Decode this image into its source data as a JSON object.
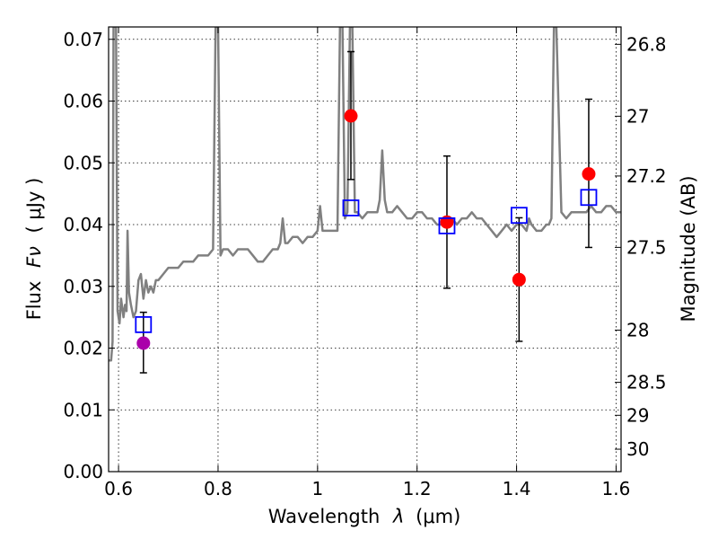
{
  "chart_data": {
    "type": "scatter",
    "title": "",
    "xlabel_prefix": "Wavelength",
    "xlabel_symbol": "λ",
    "xlabel_unit": "(μm)",
    "ylabel_prefix": "Flux",
    "ylabel_symbol": "Fν",
    "ylabel_unit": "( μJy )",
    "y2label": "Magnitude (AB)",
    "xlim": [
      0.58,
      1.61
    ],
    "ylim": [
      0.0,
      0.072
    ],
    "grid": true,
    "x_ticks": [
      0.6,
      0.8,
      1.0,
      1.2,
      1.4,
      1.6
    ],
    "x_tick_labels": [
      "0.6",
      "0.8",
      "1",
      "1.2",
      "1.4",
      "1.6"
    ],
    "y_ticks": [
      0.0,
      0.01,
      0.02,
      0.03,
      0.04,
      0.05,
      0.06,
      0.07
    ],
    "y_tick_labels": [
      "0.00",
      "0.01",
      "0.02",
      "0.03",
      "0.04",
      "0.05",
      "0.06",
      "0.07"
    ],
    "mag_ticks": [
      26.8,
      27,
      27.2,
      27.5,
      28,
      28.5,
      29,
      30
    ],
    "mag_tick_labels": [
      "26.8",
      "27",
      "27.2",
      "27.5",
      "28",
      "28.5",
      "29",
      "30"
    ],
    "colors": {
      "model": "#808080",
      "observed": "#ff0000",
      "observed_uv": "#aa00aa",
      "model_box": "#0000ff",
      "errorbar": "#000000"
    },
    "observed_points": [
      {
        "x": 0.65,
        "y": 0.0208,
        "err_low": 0.0048,
        "err_high": 0.005,
        "color": "#aa00aa"
      },
      {
        "x": 1.067,
        "y": 0.0576,
        "err_low": 0.0103,
        "err_high": 0.0104,
        "color": "#ff0000"
      },
      {
        "x": 1.26,
        "y": 0.0404,
        "err_low": 0.0107,
        "err_high": 0.0107,
        "color": "#ff0000"
      },
      {
        "x": 1.405,
        "y": 0.0311,
        "err_low": 0.01,
        "err_high": 0.01,
        "color": "#ff0000"
      },
      {
        "x": 1.545,
        "y": 0.0482,
        "err_low": 0.0119,
        "err_high": 0.0121,
        "color": "#ff0000"
      }
    ],
    "model_points": [
      {
        "x": 0.65,
        "y": 0.0238
      },
      {
        "x": 1.067,
        "y": 0.0427
      },
      {
        "x": 1.26,
        "y": 0.0398
      },
      {
        "x": 1.405,
        "y": 0.0415
      },
      {
        "x": 1.545,
        "y": 0.0444
      }
    ],
    "model_spectrum": [
      [
        0.58,
        0.018
      ],
      [
        0.585,
        0.018
      ],
      [
        0.588,
        0.021
      ],
      [
        0.59,
        0.072
      ],
      [
        0.595,
        0.072
      ],
      [
        0.598,
        0.026
      ],
      [
        0.602,
        0.024
      ],
      [
        0.605,
        0.028
      ],
      [
        0.61,
        0.025
      ],
      [
        0.613,
        0.027
      ],
      [
        0.616,
        0.026
      ],
      [
        0.618,
        0.039
      ],
      [
        0.621,
        0.029
      ],
      [
        0.625,
        0.027
      ],
      [
        0.63,
        0.025
      ],
      [
        0.635,
        0.026
      ],
      [
        0.64,
        0.031
      ],
      [
        0.645,
        0.032
      ],
      [
        0.65,
        0.028
      ],
      [
        0.655,
        0.031
      ],
      [
        0.66,
        0.029
      ],
      [
        0.665,
        0.03
      ],
      [
        0.67,
        0.029
      ],
      [
        0.675,
        0.031
      ],
      [
        0.68,
        0.031
      ],
      [
        0.69,
        0.032
      ],
      [
        0.7,
        0.033
      ],
      [
        0.71,
        0.033
      ],
      [
        0.72,
        0.033
      ],
      [
        0.73,
        0.034
      ],
      [
        0.74,
        0.034
      ],
      [
        0.75,
        0.034
      ],
      [
        0.76,
        0.035
      ],
      [
        0.77,
        0.035
      ],
      [
        0.78,
        0.035
      ],
      [
        0.79,
        0.036
      ],
      [
        0.795,
        0.072
      ],
      [
        0.8,
        0.072
      ],
      [
        0.805,
        0.035
      ],
      [
        0.81,
        0.036
      ],
      [
        0.82,
        0.036
      ],
      [
        0.83,
        0.035
      ],
      [
        0.84,
        0.036
      ],
      [
        0.85,
        0.036
      ],
      [
        0.86,
        0.036
      ],
      [
        0.87,
        0.035
      ],
      [
        0.88,
        0.034
      ],
      [
        0.89,
        0.034
      ],
      [
        0.9,
        0.035
      ],
      [
        0.91,
        0.036
      ],
      [
        0.92,
        0.036
      ],
      [
        0.925,
        0.037
      ],
      [
        0.93,
        0.041
      ],
      [
        0.935,
        0.037
      ],
      [
        0.94,
        0.037
      ],
      [
        0.95,
        0.038
      ],
      [
        0.96,
        0.038
      ],
      [
        0.97,
        0.037
      ],
      [
        0.98,
        0.038
      ],
      [
        0.99,
        0.038
      ],
      [
        1.0,
        0.039
      ],
      [
        1.005,
        0.043
      ],
      [
        1.01,
        0.039
      ],
      [
        1.02,
        0.039
      ],
      [
        1.03,
        0.039
      ],
      [
        1.04,
        0.039
      ],
      [
        1.045,
        0.072
      ],
      [
        1.05,
        0.072
      ],
      [
        1.055,
        0.041
      ],
      [
        1.06,
        0.042
      ],
      [
        1.065,
        0.072
      ],
      [
        1.07,
        0.072
      ],
      [
        1.075,
        0.042
      ],
      [
        1.08,
        0.042
      ],
      [
        1.09,
        0.041
      ],
      [
        1.1,
        0.042
      ],
      [
        1.11,
        0.042
      ],
      [
        1.12,
        0.042
      ],
      [
        1.125,
        0.044
      ],
      [
        1.13,
        0.052
      ],
      [
        1.135,
        0.044
      ],
      [
        1.14,
        0.042
      ],
      [
        1.15,
        0.042
      ],
      [
        1.16,
        0.043
      ],
      [
        1.17,
        0.042
      ],
      [
        1.18,
        0.041
      ],
      [
        1.19,
        0.041
      ],
      [
        1.2,
        0.042
      ],
      [
        1.21,
        0.042
      ],
      [
        1.22,
        0.041
      ],
      [
        1.23,
        0.041
      ],
      [
        1.24,
        0.04
      ],
      [
        1.25,
        0.04
      ],
      [
        1.26,
        0.04
      ],
      [
        1.27,
        0.041
      ],
      [
        1.28,
        0.04
      ],
      [
        1.29,
        0.041
      ],
      [
        1.3,
        0.041
      ],
      [
        1.31,
        0.042
      ],
      [
        1.32,
        0.041
      ],
      [
        1.33,
        0.041
      ],
      [
        1.34,
        0.04
      ],
      [
        1.35,
        0.039
      ],
      [
        1.36,
        0.038
      ],
      [
        1.37,
        0.039
      ],
      [
        1.38,
        0.04
      ],
      [
        1.39,
        0.039
      ],
      [
        1.4,
        0.04
      ],
      [
        1.41,
        0.04
      ],
      [
        1.42,
        0.039
      ],
      [
        1.425,
        0.041
      ],
      [
        1.43,
        0.04
      ],
      [
        1.44,
        0.039
      ],
      [
        1.45,
        0.039
      ],
      [
        1.46,
        0.04
      ],
      [
        1.465,
        0.04
      ],
      [
        1.47,
        0.041
      ],
      [
        1.475,
        0.072
      ],
      [
        1.48,
        0.072
      ],
      [
        1.49,
        0.042
      ],
      [
        1.5,
        0.041
      ],
      [
        1.51,
        0.042
      ],
      [
        1.52,
        0.042
      ],
      [
        1.53,
        0.042
      ],
      [
        1.54,
        0.042
      ],
      [
        1.55,
        0.043
      ],
      [
        1.56,
        0.042
      ],
      [
        1.57,
        0.042
      ],
      [
        1.58,
        0.043
      ],
      [
        1.59,
        0.043
      ],
      [
        1.6,
        0.042
      ],
      [
        1.61,
        0.042
      ]
    ]
  }
}
